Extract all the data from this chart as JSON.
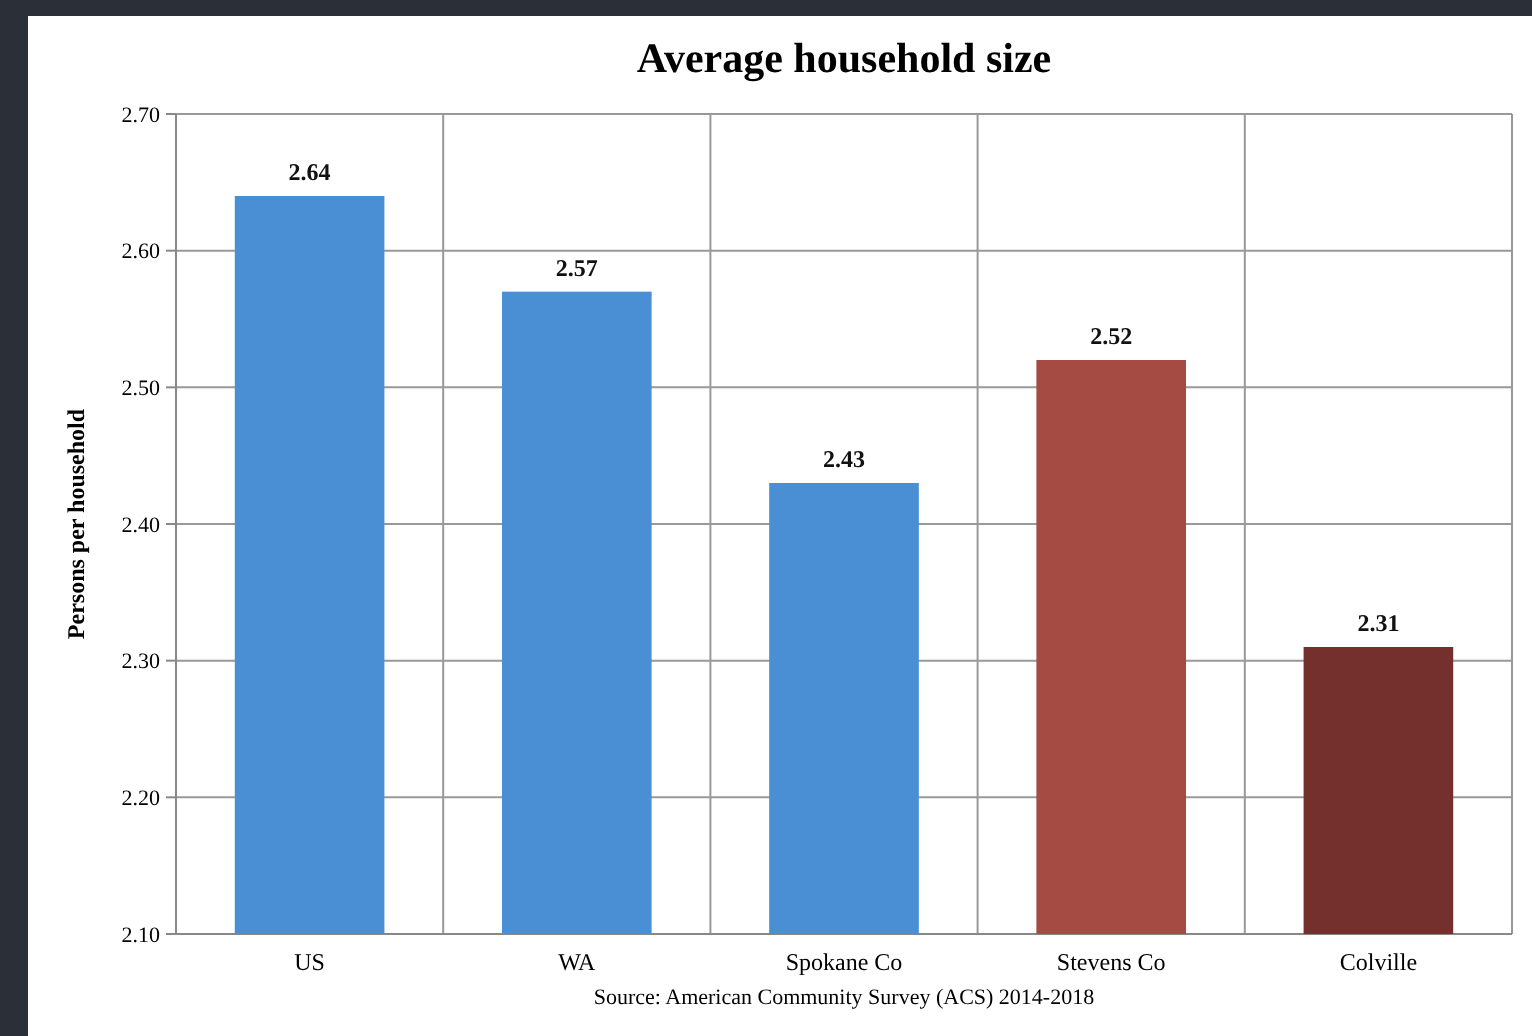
{
  "chart_data": {
    "type": "bar",
    "title": "Average household size",
    "ylabel": "Persons per household",
    "categories": [
      "US",
      "WA",
      "Spokane Co",
      "Stevens Co",
      "Colville"
    ],
    "values": [
      2.64,
      2.57,
      2.43,
      2.52,
      2.31
    ],
    "colors": [
      "#4a8fd4",
      "#4a8fd4",
      "#4a8fd4",
      "#a54b43",
      "#74302c"
    ],
    "ylim": [
      2.1,
      2.7
    ],
    "yticks": [
      {
        "value": 2.1,
        "label": "2.10"
      },
      {
        "value": 2.2,
        "label": "2.20"
      },
      {
        "value": 2.3,
        "label": "2.30"
      },
      {
        "value": 2.4,
        "label": "2.40"
      },
      {
        "value": 2.5,
        "label": "2.50"
      },
      {
        "value": 2.6,
        "label": "2.60"
      },
      {
        "value": 2.7,
        "label": "2.70"
      }
    ],
    "grid": true,
    "data_labels": true,
    "annotations": [
      "Source: American Community Survey (ACS) 2014-2018"
    ]
  }
}
